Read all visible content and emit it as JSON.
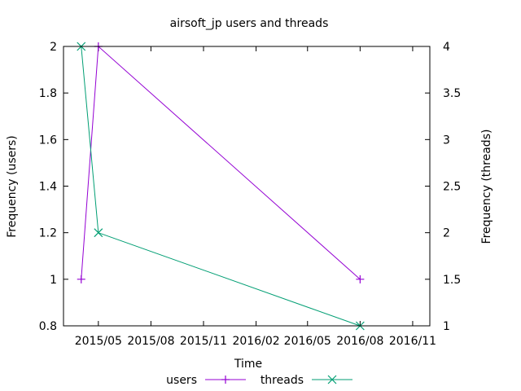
{
  "chart_data": {
    "type": "line",
    "title": "airsoft_jp users and threads",
    "xlabel": "Time",
    "ylabel": "Frequency (users)",
    "y2label": "Frequency (threads)",
    "x_range": [
      "2015-03-01",
      "2016-12-01"
    ],
    "x_ticks": [
      {
        "date": "2015-05-01",
        "label": "2015/05"
      },
      {
        "date": "2015-08-01",
        "label": "2015/08"
      },
      {
        "date": "2015-11-01",
        "label": "2015/11"
      },
      {
        "date": "2016-02-01",
        "label": "2016/02"
      },
      {
        "date": "2016-05-01",
        "label": "2016/05"
      },
      {
        "date": "2016-08-01",
        "label": "2016/08"
      },
      {
        "date": "2016-11-01",
        "label": "2016/11"
      }
    ],
    "ylim": [
      0.8,
      2
    ],
    "y_ticks": [
      "0.8",
      "1",
      "1.2",
      "1.4",
      "1.6",
      "1.8",
      "2"
    ],
    "y2lim": [
      1,
      4
    ],
    "y2_ticks": [
      "1",
      "1.5",
      "2",
      "2.5",
      "3",
      "3.5",
      "4"
    ],
    "grid": false,
    "legend_position": "bottom",
    "series": [
      {
        "name": "users",
        "axis": "left",
        "color": "#9400d3",
        "marker": "plus",
        "points": [
          {
            "x": "2015-04-01",
            "y": 1
          },
          {
            "x": "2015-05-01",
            "y": 2
          },
          {
            "x": "2016-08-01",
            "y": 1
          }
        ]
      },
      {
        "name": "threads",
        "axis": "right",
        "color": "#009e73",
        "marker": "cross",
        "points": [
          {
            "x": "2015-04-01",
            "y": 4
          },
          {
            "x": "2015-05-01",
            "y": 2
          },
          {
            "x": "2016-08-01",
            "y": 1
          }
        ]
      }
    ]
  }
}
